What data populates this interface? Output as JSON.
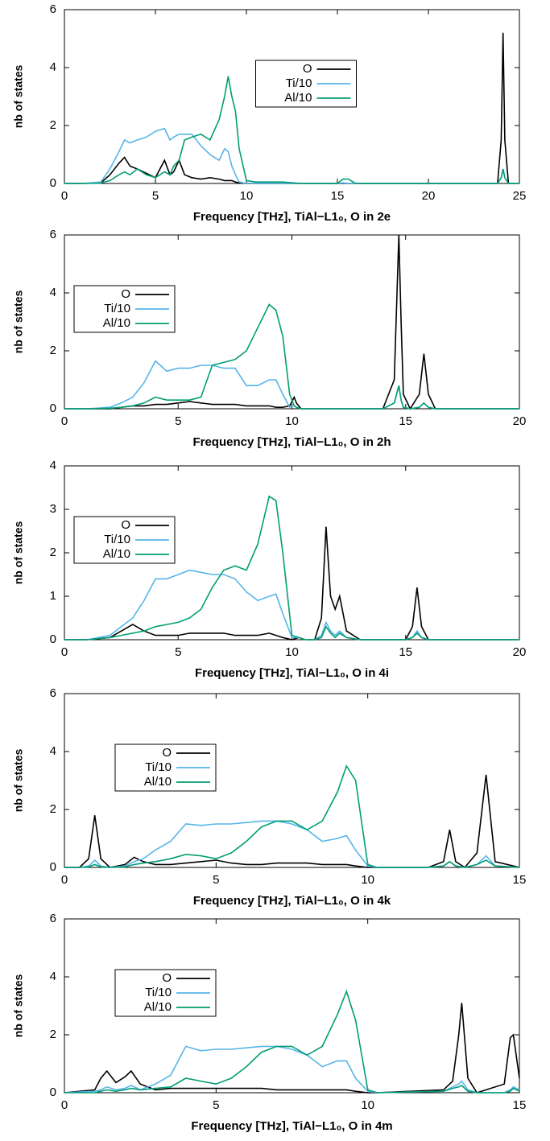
{
  "chart_data": [
    {
      "type": "line",
      "xlabel": "Frequency [THz], TiAl−L1₀, O in 2e",
      "ylabel": "nb of states",
      "legend": "top",
      "xlim": [
        0,
        25
      ],
      "xticks": [
        0,
        5,
        10,
        15,
        20,
        25
      ],
      "ylim": [
        0,
        6
      ],
      "yticks": [
        0,
        2,
        4,
        6
      ],
      "x": [
        0,
        1,
        2,
        2.5,
        3,
        3.3,
        3.6,
        4,
        4.5,
        5,
        5.5,
        5.8,
        6,
        6.3,
        6.6,
        7,
        7.5,
        8,
        8.5,
        8.8,
        9,
        9.2,
        9.4,
        9.6,
        10,
        10.5,
        11,
        12,
        13,
        15,
        15.3,
        15.6,
        16,
        20,
        23.8,
        24,
        24.1,
        24.2,
        24.4,
        25
      ],
      "series": [
        {
          "name": "O",
          "color": "#000000",
          "values": [
            0,
            0,
            0.02,
            0.3,
            0.7,
            0.9,
            0.6,
            0.5,
            0.35,
            0.2,
            0.8,
            0.3,
            0.4,
            0.8,
            0.3,
            0.2,
            0.15,
            0.2,
            0.15,
            0.1,
            0.1,
            0.1,
            0.05,
            0.02,
            0,
            0,
            0,
            0,
            0,
            0,
            0,
            0,
            0,
            0,
            0,
            1.5,
            5.2,
            1.5,
            0,
            0
          ]
        },
        {
          "name": "Ti/10",
          "color": "#56b4e9",
          "values": [
            0,
            0,
            0.05,
            0.5,
            1.1,
            1.5,
            1.4,
            1.5,
            1.6,
            1.8,
            1.9,
            1.5,
            1.6,
            1.7,
            1.7,
            1.7,
            1.3,
            1.0,
            0.8,
            1.2,
            1.1,
            0.6,
            0.3,
            0.05,
            0,
            0,
            0,
            0,
            0,
            0,
            0.02,
            0,
            0,
            0,
            0,
            0.2,
            0.5,
            0.2,
            0,
            0
          ]
        },
        {
          "name": "Al/10",
          "color": "#009e73",
          "values": [
            0,
            0,
            0.01,
            0.1,
            0.3,
            0.4,
            0.3,
            0.5,
            0.3,
            0.2,
            0.4,
            0.3,
            0.6,
            0.8,
            1.5,
            1.6,
            1.7,
            1.5,
            2.2,
            3.0,
            3.7,
            3.0,
            2.5,
            1.2,
            0.1,
            0.05,
            0.05,
            0.05,
            0,
            0,
            0.15,
            0.15,
            0,
            0,
            0,
            0.2,
            0.5,
            0.2,
            0,
            0
          ]
        }
      ]
    },
    {
      "type": "line",
      "xlabel": "Frequency [THz], TiAl−L1₀, O in 2h",
      "ylabel": "nb of states",
      "legend": "top left",
      "xlim": [
        0,
        20
      ],
      "xticks": [
        0,
        5,
        10,
        15,
        20
      ],
      "ylim": [
        0,
        6
      ],
      "yticks": [
        0,
        2,
        4,
        6
      ],
      "x": [
        0,
        1,
        2,
        2.5,
        3,
        3.5,
        4,
        4.5,
        5,
        5.5,
        6,
        6.5,
        7,
        7.5,
        8,
        8.5,
        9,
        9.3,
        9.6,
        9.9,
        10.1,
        10.2,
        10.4,
        11,
        14,
        14.5,
        14.7,
        14.8,
        14.9,
        15.2,
        15.6,
        15.8,
        16,
        16.3,
        20
      ],
      "series": [
        {
          "name": "O",
          "color": "#000000",
          "values": [
            0,
            0,
            0,
            0.05,
            0.1,
            0.1,
            0.15,
            0.15,
            0.2,
            0.25,
            0.2,
            0.15,
            0.15,
            0.15,
            0.1,
            0.1,
            0.1,
            0.05,
            0.05,
            0.1,
            0.4,
            0.2,
            0,
            0,
            0,
            1,
            6,
            3,
            0.5,
            0,
            0.5,
            1.9,
            0.5,
            0,
            0
          ]
        },
        {
          "name": "Ti/10",
          "color": "#56b4e9",
          "values": [
            0,
            0,
            0.05,
            0.2,
            0.4,
            0.9,
            1.65,
            1.3,
            1.4,
            1.4,
            1.5,
            1.5,
            1.4,
            1.4,
            0.8,
            0.8,
            1.0,
            1.0,
            0.5,
            0.05,
            0.1,
            0.05,
            0,
            0,
            0,
            0.2,
            0.8,
            0.3,
            0.05,
            0,
            0.05,
            0.2,
            0.05,
            0,
            0
          ]
        },
        {
          "name": "Al/10",
          "color": "#009e73",
          "values": [
            0,
            0,
            0.02,
            0.05,
            0.1,
            0.2,
            0.4,
            0.3,
            0.3,
            0.3,
            0.4,
            1.5,
            1.6,
            1.7,
            2.0,
            2.8,
            3.6,
            3.4,
            2.5,
            0.5,
            0.1,
            0.05,
            0,
            0,
            0,
            0.2,
            0.8,
            0.3,
            0.05,
            0,
            0.05,
            0.2,
            0.05,
            0,
            0
          ]
        }
      ]
    },
    {
      "type": "line",
      "xlabel": "Frequency [THz], TiAl−L1₀, O in 4i",
      "ylabel": "nb of states",
      "legend": "top left",
      "xlim": [
        0,
        20
      ],
      "xticks": [
        0,
        5,
        10,
        15,
        20
      ],
      "ylim": [
        0,
        4
      ],
      "yticks": [
        0,
        1,
        2,
        3,
        4
      ],
      "x": [
        0,
        1,
        2,
        2.5,
        3,
        3.5,
        4,
        4.5,
        5,
        5.5,
        6,
        6.5,
        7,
        7.5,
        8,
        8.5,
        9,
        9.3,
        9.6,
        10,
        10.3,
        10.6,
        11,
        11.3,
        11.5,
        11.7,
        11.9,
        12.1,
        12.4,
        13,
        15,
        15.3,
        15.5,
        15.7,
        16,
        20
      ],
      "series": [
        {
          "name": "O",
          "color": "#000000",
          "values": [
            0,
            0,
            0.05,
            0.2,
            0.35,
            0.2,
            0.1,
            0.1,
            0.1,
            0.15,
            0.15,
            0.15,
            0.15,
            0.1,
            0.1,
            0.1,
            0.15,
            0.1,
            0.05,
            0,
            0.05,
            0,
            0,
            0.5,
            2.6,
            1.0,
            0.7,
            1.0,
            0.2,
            0,
            0,
            0.3,
            1.2,
            0.3,
            0,
            0
          ]
        },
        {
          "name": "Ti/10",
          "color": "#56b4e9",
          "values": [
            0,
            0,
            0.1,
            0.3,
            0.5,
            0.9,
            1.4,
            1.4,
            1.5,
            1.6,
            1.55,
            1.5,
            1.5,
            1.4,
            1.1,
            0.9,
            1.0,
            1.05,
            0.6,
            0.05,
            0.05,
            0,
            0,
            0.1,
            0.4,
            0.2,
            0.1,
            0.2,
            0.05,
            0,
            0,
            0.05,
            0.2,
            0.05,
            0,
            0
          ]
        },
        {
          "name": "Al/10",
          "color": "#009e73",
          "values": [
            0,
            0,
            0.05,
            0.1,
            0.15,
            0.2,
            0.3,
            0.35,
            0.4,
            0.5,
            0.7,
            1.2,
            1.6,
            1.7,
            1.6,
            2.2,
            3.3,
            3.2,
            2.0,
            0.1,
            0.05,
            0,
            0,
            0.05,
            0.3,
            0.15,
            0.05,
            0.15,
            0.05,
            0,
            0,
            0.05,
            0.15,
            0.05,
            0,
            0
          ]
        }
      ]
    },
    {
      "type": "line",
      "xlabel": "Frequency [THz], TiAl−L1₀, O in 4k",
      "ylabel": "nb of states",
      "legend": "upper left",
      "xlim": [
        0,
        15
      ],
      "xticks": [
        0,
        5,
        10,
        15
      ],
      "ylim": [
        0,
        6
      ],
      "yticks": [
        0,
        2,
        4,
        6
      ],
      "x": [
        0,
        0.5,
        0.8,
        1,
        1.2,
        1.5,
        2,
        2.3,
        2.6,
        3,
        3.5,
        4,
        4.5,
        5,
        5.5,
        6,
        6.5,
        7,
        7.5,
        8,
        8.5,
        9,
        9.3,
        9.6,
        10,
        10.3,
        12,
        12.5,
        12.7,
        12.9,
        13.2,
        13.6,
        13.9,
        14.2,
        15
      ],
      "series": [
        {
          "name": "O",
          "color": "#000000",
          "values": [
            0,
            0,
            0.3,
            1.8,
            0.3,
            0,
            0.1,
            0.35,
            0.2,
            0.1,
            0.1,
            0.15,
            0.2,
            0.25,
            0.15,
            0.1,
            0.1,
            0.15,
            0.15,
            0.15,
            0.1,
            0.1,
            0.1,
            0.05,
            0,
            0,
            0,
            0.2,
            1.3,
            0.2,
            0,
            0.5,
            3.2,
            0.2,
            0
          ]
        },
        {
          "name": "Ti/10",
          "color": "#56b4e9",
          "values": [
            0,
            0,
            0.05,
            0.25,
            0.05,
            0,
            0.05,
            0.2,
            0.3,
            0.6,
            0.9,
            1.5,
            1.45,
            1.5,
            1.5,
            1.55,
            1.6,
            1.6,
            1.5,
            1.3,
            0.9,
            1.0,
            1.1,
            0.6,
            0.05,
            0,
            0,
            0.05,
            0.2,
            0.05,
            0,
            0.1,
            0.4,
            0.05,
            0
          ]
        },
        {
          "name": "Al/10",
          "color": "#009e73",
          "values": [
            0,
            0,
            0.02,
            0.1,
            0.02,
            0,
            0.02,
            0.1,
            0.15,
            0.2,
            0.3,
            0.45,
            0.4,
            0.3,
            0.5,
            0.9,
            1.4,
            1.6,
            1.6,
            1.3,
            1.6,
            2.6,
            3.5,
            3.0,
            0.1,
            0,
            0,
            0.05,
            0.2,
            0.05,
            0,
            0.1,
            0.25,
            0.05,
            0
          ]
        }
      ]
    },
    {
      "type": "line",
      "xlabel": "Frequency [THz], TiAl−L1₀, O in 4m",
      "ylabel": "nb of states",
      "legend": "upper left",
      "xlim": [
        0,
        15
      ],
      "xticks": [
        0,
        5,
        10,
        15
      ],
      "ylim": [
        0,
        6
      ],
      "yticks": [
        0,
        2,
        4,
        6
      ],
      "x": [
        0,
        1,
        1.2,
        1.4,
        1.7,
        2,
        2.2,
        2.5,
        3,
        3.5,
        4,
        4.5,
        5,
        5.5,
        6,
        6.5,
        7,
        7.5,
        8,
        8.5,
        9,
        9.3,
        9.6,
        10,
        10.3,
        12.5,
        12.8,
        13,
        13.1,
        13.3,
        13.6,
        14.5,
        14.7,
        14.8,
        15
      ],
      "series": [
        {
          "name": "O",
          "color": "#000000",
          "values": [
            0,
            0.1,
            0.5,
            0.75,
            0.35,
            0.55,
            0.75,
            0.3,
            0.1,
            0.15,
            0.15,
            0.15,
            0.15,
            0.15,
            0.15,
            0.15,
            0.1,
            0.1,
            0.1,
            0.1,
            0.1,
            0.1,
            0.05,
            0,
            0,
            0.1,
            0.4,
            2.0,
            3.1,
            0.5,
            0,
            0.3,
            1.9,
            2.0,
            0.5
          ]
        },
        {
          "name": "Ti/10",
          "color": "#56b4e9",
          "values": [
            0,
            0.05,
            0.1,
            0.2,
            0.1,
            0.15,
            0.25,
            0.1,
            0.3,
            0.6,
            1.6,
            1.45,
            1.5,
            1.5,
            1.55,
            1.6,
            1.6,
            1.5,
            1.3,
            0.9,
            1.1,
            1.1,
            0.5,
            0.05,
            0,
            0.05,
            0.2,
            0.3,
            0.4,
            0.1,
            0,
            0,
            0.1,
            0.2,
            0.1
          ]
        },
        {
          "name": "Al/10",
          "color": "#009e73",
          "values": [
            0,
            0,
            0.05,
            0.1,
            0.05,
            0.1,
            0.15,
            0.1,
            0.15,
            0.2,
            0.5,
            0.4,
            0.3,
            0.5,
            0.9,
            1.4,
            1.6,
            1.6,
            1.3,
            1.6,
            2.7,
            3.5,
            2.5,
            0.1,
            0,
            0.05,
            0.15,
            0.2,
            0.25,
            0.05,
            0,
            0,
            0.05,
            0.15,
            0.05
          ]
        }
      ]
    }
  ]
}
